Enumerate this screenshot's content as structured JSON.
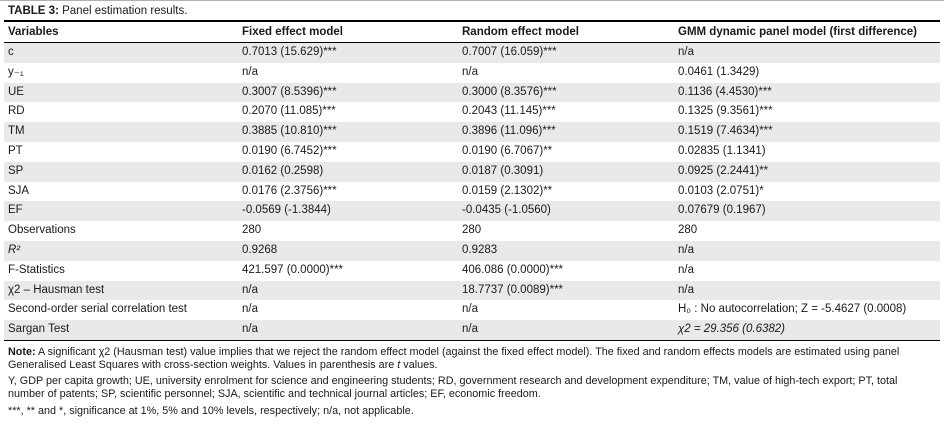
{
  "title": {
    "label": "TABLE 3:",
    "text": "Panel estimation results."
  },
  "table": {
    "headers": [
      "Variables",
      "Fixed effect model",
      "Random effect model",
      "GMM dynamic panel model (first difference)"
    ],
    "rows": [
      {
        "cells": [
          "c",
          "0.7013 (15.629)***",
          "0.7007 (16.059)***",
          "n/a"
        ]
      },
      {
        "cells": [
          "y₋₁",
          "n/a",
          "n/a",
          "0.0461 (1.3429)"
        ]
      },
      {
        "cells": [
          "UE",
          "0.3007 (8.5396)***",
          "0.3000 (8.3576)***",
          "0.1136 (4.4530)***"
        ]
      },
      {
        "cells": [
          "RD",
          "0.2070 (11.085)***",
          "0.2043 (11.145)***",
          "0.1325 (9.3561)***"
        ]
      },
      {
        "cells": [
          "TM",
          "0.3885 (10.810)***",
          "0.3896 (11.096)***",
          "0.1519 (7.4634)***"
        ]
      },
      {
        "cells": [
          "PT",
          "0.0190 (6.7452)***",
          "0.0190 (6.7067)**",
          "0.02835 (1.1341)"
        ]
      },
      {
        "cells": [
          "SP",
          "0.0162 (0.2598)",
          "0.0187 (0.3091)",
          "0.0925 (2.2441)**"
        ]
      },
      {
        "cells": [
          "SJA",
          "0.0176 (2.3756)***",
          "0.0159 (2.1302)**",
          "0.0103 (2.0751)*"
        ]
      },
      {
        "cells": [
          "EF",
          "-0.0569 (-1.3844)",
          "-0.0435 (-1.0560)",
          "0.07679 (0.1967)"
        ]
      },
      {
        "cells": [
          "Observations",
          "280",
          "280",
          "280"
        ]
      },
      {
        "cells": [
          "R²",
          "0.9268",
          "0.9283",
          "n/a"
        ],
        "italic_cols": [
          0
        ]
      },
      {
        "cells": [
          "F-Statistics",
          "421.597 (0.0000)***",
          "406.086 (0.0000)***",
          "n/a"
        ]
      },
      {
        "cells": [
          "χ2 – Hausman test",
          "n/a",
          "18.7737 (0.0089)***",
          "n/a"
        ]
      },
      {
        "cells": [
          "Second-order serial correlation test",
          "n/a",
          "n/a",
          "H₀ : No autocorrelation; Z = -5.4627 (0.0008)"
        ]
      },
      {
        "cells": [
          "Sargan Test",
          "n/a",
          "n/a",
          "χ2 = 29.356 (0.6382)"
        ],
        "italic_cols": [
          3
        ]
      }
    ]
  },
  "notes": {
    "note_label": "Note:",
    "note_body": "A significant χ2 (Hausman test) value implies that we reject the random effect model (against the fixed effect model). The fixed and random effects models are estimated using panel Generalised Least Squares with cross-section weights. Values in parenthesis are",
    "note_t": "t",
    "note_tail": "values.",
    "abbreviations": "Y, GDP per capita growth; UE, university enrolment for science and engineering students; RD, government research and development expenditure; TM, value of high-tech export; PT, total number of patents; SP, scientific personnel; SJA, scientific and technical journal articles; EF, economic freedom.",
    "significance": "***, ** and *, significance at 1%, 5% and 10% levels, respectively; n/a, not applicable."
  },
  "colors": {
    "stripe": "#e9e9e9",
    "rule": "#000000"
  }
}
